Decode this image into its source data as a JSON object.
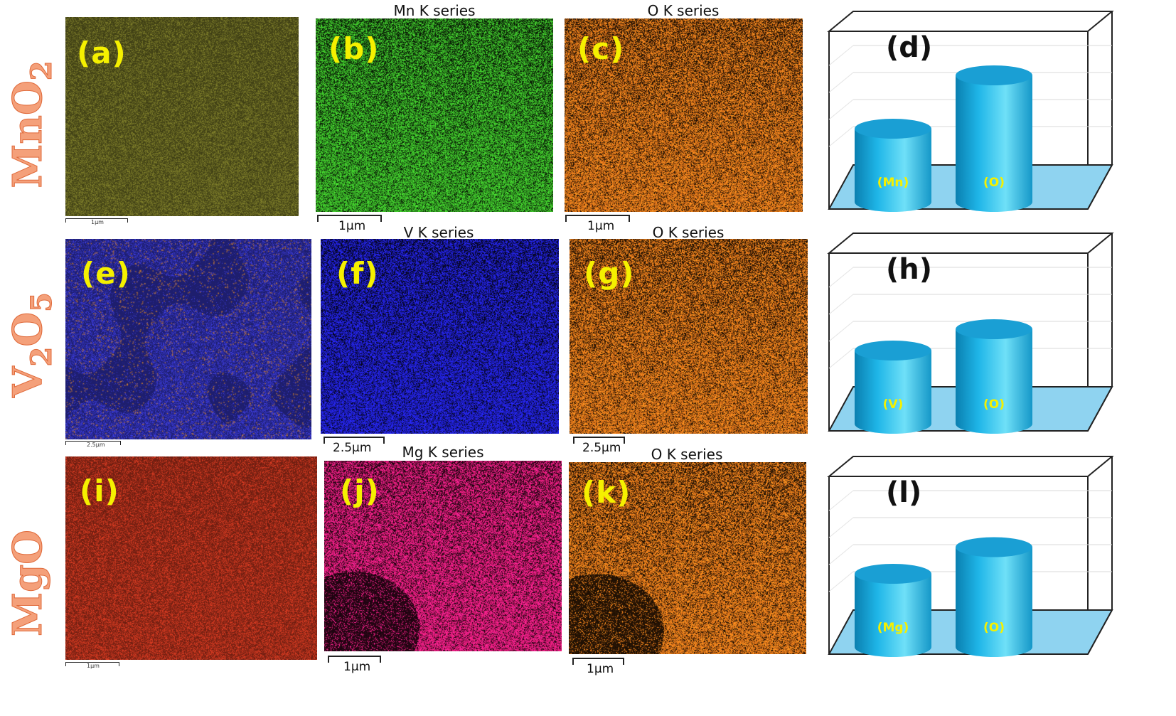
{
  "rows": [
    {
      "compound_main": "MnO",
      "compound_sub": "2",
      "compound_tail": "",
      "compound_tail_sub": "",
      "color": "#f0916a"
    },
    {
      "compound_main": "V",
      "compound_sub": "2",
      "compound_tail": "O",
      "compound_tail_sub": "5",
      "color": "#f0916a"
    },
    {
      "compound_main": "MgO",
      "compound_sub": "",
      "compound_tail": "",
      "compound_tail_sub": "",
      "color": "#f0916a"
    }
  ],
  "panels": {
    "a": {
      "tag": "(a)",
      "scale": "1μm"
    },
    "b": {
      "tag": "(b)",
      "title": "Mn K series",
      "scale": "1μm"
    },
    "c": {
      "tag": "(c)",
      "title": "O K series",
      "scale": "1μm"
    },
    "d": {
      "tag": "(d)",
      "bar1": "(Mn)",
      "bar2": "(O)"
    },
    "e": {
      "tag": "(e)",
      "scale": "2.5μm"
    },
    "f": {
      "tag": "(f)",
      "title": "V K series",
      "scale": "2.5μm"
    },
    "g": {
      "tag": "(g)",
      "title": "O K series",
      "scale": "2.5μm"
    },
    "h": {
      "tag": "(h)",
      "bar1": "(V)",
      "bar2": "(O)"
    },
    "i": {
      "tag": "(i)",
      "scale": "1μm"
    },
    "j": {
      "tag": "(j)",
      "title": "Mg K series",
      "scale": "1μm"
    },
    "k": {
      "tag": "(k)",
      "title": "O K series",
      "scale": "1μm"
    },
    "l": {
      "tag": "(l)",
      "bar1": "(Mg)",
      "bar2": "(O)"
    }
  },
  "colors": {
    "composite_mn": "#5a5a1e",
    "map_mn": "#39b027",
    "map_o": "#e0751a",
    "composite_v": "#2a2a9a",
    "map_v": "#2020d0",
    "composite_mg": "#9a2a18",
    "map_mg": "#e01c78",
    "tag": "#f5f000",
    "cylinder": "#1aa3d8",
    "floor": "#8fd3f0"
  },
  "chart_data": [
    {
      "type": "bar",
      "categories": [
        "(Mn)",
        "(O)"
      ],
      "values": [
        1,
        2
      ],
      "title": "(d)"
    },
    {
      "type": "bar",
      "categories": [
        "(V)",
        "(O)"
      ],
      "values": [
        1,
        1.4
      ],
      "title": "(h)"
    },
    {
      "type": "bar",
      "categories": [
        "(Mg)",
        "(O)"
      ],
      "values": [
        1,
        1.5
      ],
      "title": "(l)"
    }
  ]
}
